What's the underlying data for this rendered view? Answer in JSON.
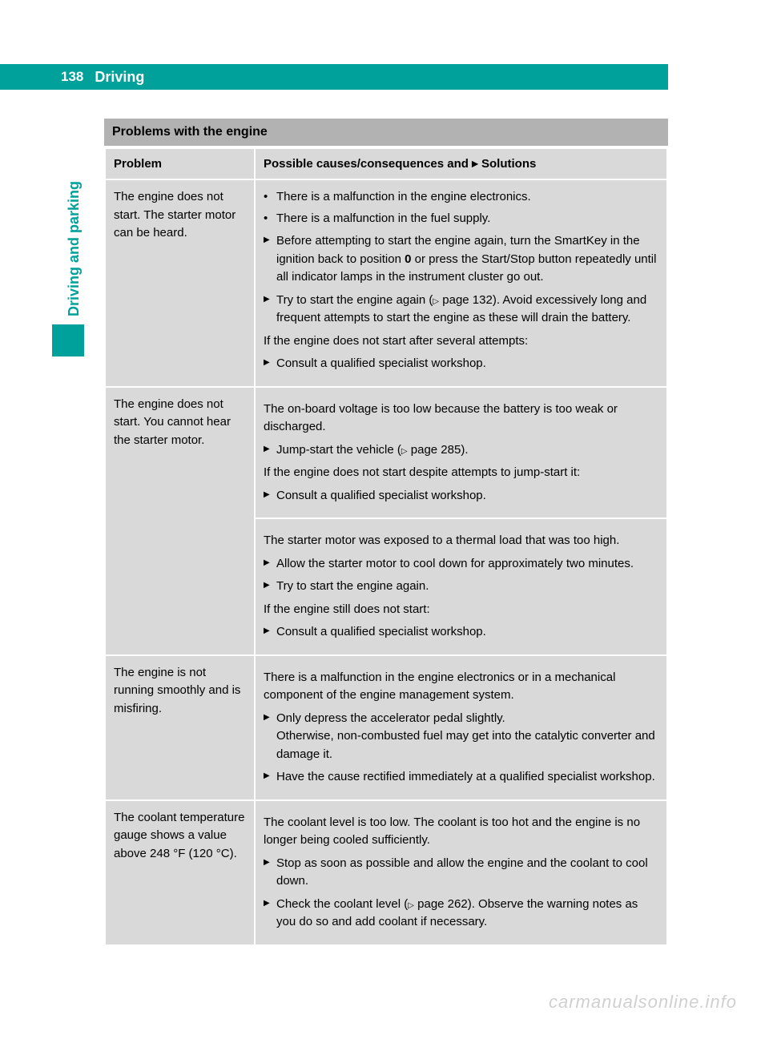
{
  "page": {
    "number": "138",
    "title": "Driving",
    "sidebar_text": "Driving and parking",
    "section_heading": "Problems with the engine",
    "watermark": "carmanualsonline.info"
  },
  "colors": {
    "teal": "#00a19a",
    "gray_dark": "#b2b2b2",
    "gray_light": "#d9d9d9",
    "text": "#000000",
    "white": "#ffffff",
    "watermark": "#d0d0d0"
  },
  "table": {
    "headers": {
      "problem": "Problem",
      "solutions_prefix": "Possible causes/consequences and ",
      "solutions_suffix": " Solutions"
    },
    "rows": [
      {
        "problem": "The engine does not start. The starter motor can be heard.",
        "rowspan": 1,
        "causes": [
          "There is a malfunction in the engine electronics.",
          "There is a malfunction in the fuel supply."
        ],
        "actions1": [
          "Before attempting to start the engine again, turn the SmartKey in the ignition back to position 0 or press the Start/Stop button repeatedly until all indicator lamps in the instrument cluster go out.",
          "Try to start the engine again (▷ page 132). Avoid excessively long and frequent attempts to start the engine as these will drain the battery."
        ],
        "para1": "If the engine does not start after several attempts:",
        "actions2": [
          "Consult a qualified specialist workshop."
        ]
      },
      {
        "problem": "The engine does not start. You cannot hear the starter motor.",
        "rowspan": 2,
        "block_a": {
          "para1": "The on-board voltage is too low because the battery is too weak or discharged.",
          "actions1": [
            "Jump-start the vehicle (▷ page 285)."
          ],
          "para2": "If the engine does not start despite attempts to jump-start it:",
          "actions2": [
            "Consult a qualified specialist workshop."
          ]
        },
        "block_b": {
          "para1": "The starter motor was exposed to a thermal load that was too high.",
          "actions1": [
            "Allow the starter motor to cool down for approximately two minutes.",
            "Try to start the engine again."
          ],
          "para2": "If the engine still does not start:",
          "actions2": [
            "Consult a qualified specialist workshop."
          ]
        }
      },
      {
        "problem": "The engine is not running smoothly and is misfiring.",
        "rowspan": 1,
        "para1": "There is a malfunction in the engine electronics or in a mechanical component of the engine management system.",
        "actions1_html": [
          "Only depress the accelerator pedal slightly.<br>Otherwise, non-combusted fuel may get into the catalytic converter and damage it.",
          "Have the cause rectified immediately at a qualified specialist workshop."
        ]
      },
      {
        "problem": "The coolant temperature gauge shows a value above 248 °F (120 °C).",
        "rowspan": 1,
        "para1": "The coolant level is too low. The coolant is too hot and the engine is no longer being cooled sufficiently.",
        "actions1": [
          "Stop as soon as possible and allow the engine and the coolant to cool down.",
          "Check the coolant level (▷ page 262). Observe the warning notes as you do so and add coolant if necessary."
        ]
      }
    ]
  }
}
